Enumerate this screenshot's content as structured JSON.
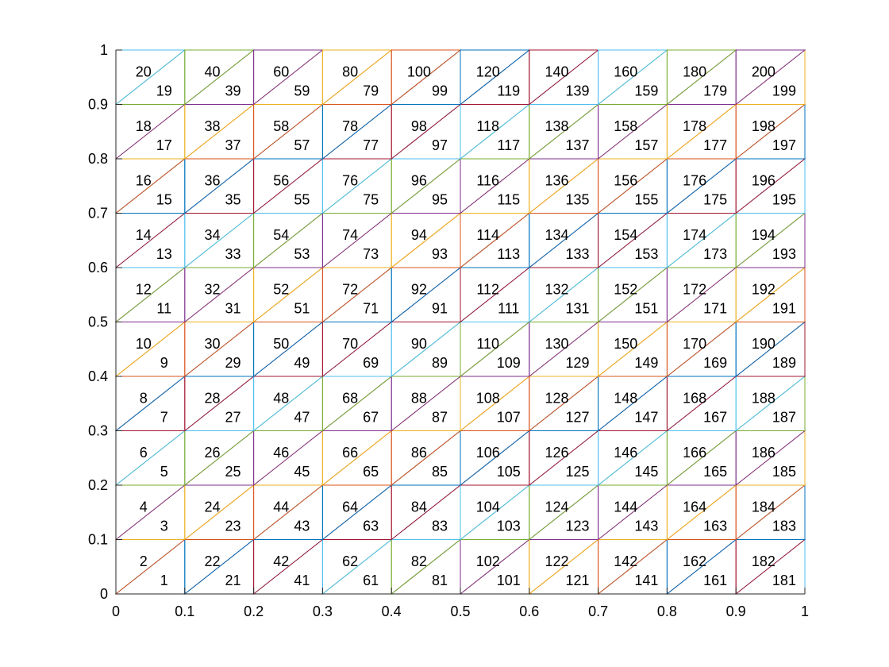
{
  "chart_data": {
    "type": "mesh",
    "title": "",
    "xlabel": "",
    "ylabel": "",
    "xlim": [
      0,
      1
    ],
    "ylim": [
      0,
      1
    ],
    "grid": false,
    "nx": 10,
    "ny": 10,
    "xticks": [
      0,
      0.1,
      0.2,
      0.3,
      0.4,
      0.5,
      0.6,
      0.7,
      0.8,
      0.9,
      1
    ],
    "yticks": [
      0,
      0.1,
      0.2,
      0.3,
      0.4,
      0.5,
      0.6,
      0.7,
      0.8,
      0.9,
      1
    ],
    "xtick_labels": [
      "0",
      "0.1",
      "0.2",
      "0.3",
      "0.4",
      "0.5",
      "0.6",
      "0.7",
      "0.8",
      "0.9",
      "1"
    ],
    "ytick_labels": [
      "0",
      "0.1",
      "0.2",
      "0.3",
      "0.4",
      "0.5",
      "0.6",
      "0.7",
      "0.8",
      "0.9",
      "1"
    ],
    "triangle_numbering": "column-major from bottom-left; lower-right triangle odd, upper-left triangle even",
    "colors": [
      "#0072BD",
      "#D95319",
      "#EDB120",
      "#7E2F8E",
      "#77AC30",
      "#4DBEEE",
      "#A2142F"
    ]
  }
}
